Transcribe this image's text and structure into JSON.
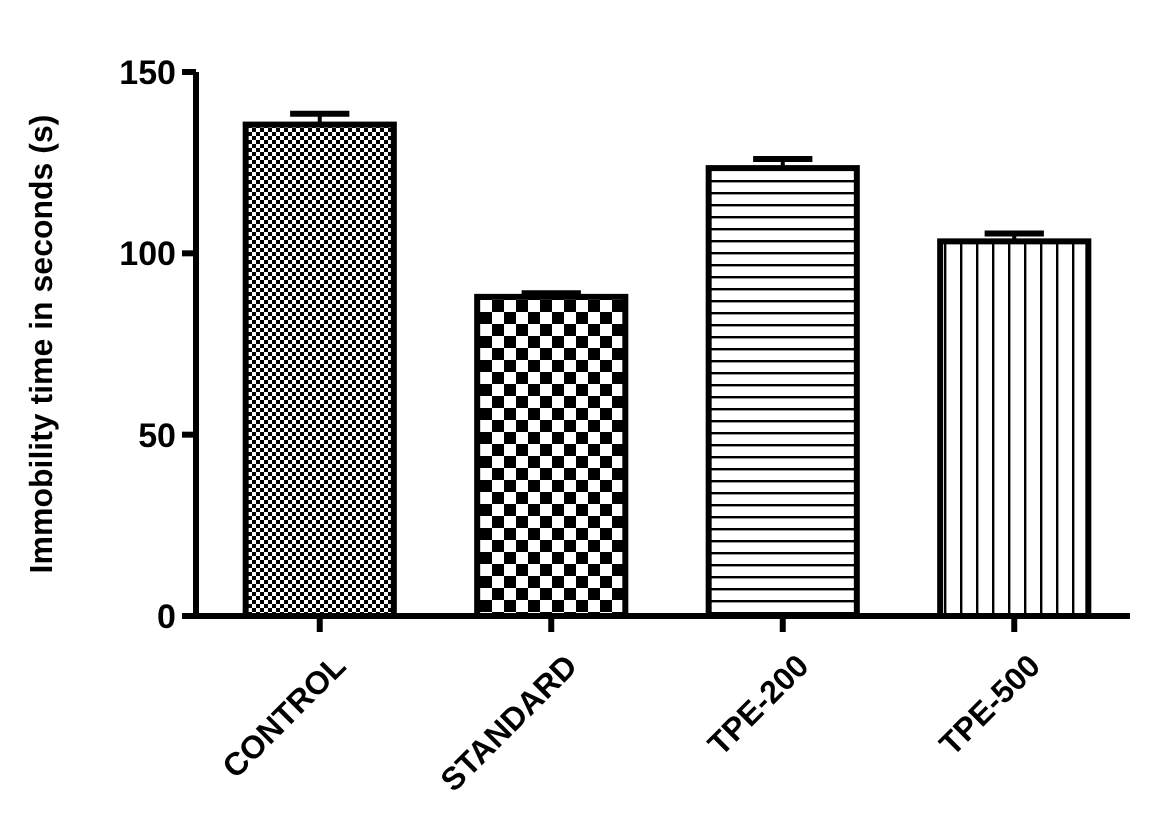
{
  "chart_data": {
    "type": "bar",
    "ylabel": "Immobility time in seconds (s)",
    "categories": [
      "CONTROL",
      "STANDARD",
      "TPE-200",
      "TPE-500"
    ],
    "values": [
      135.5,
      88,
      123.5,
      103.3
    ],
    "errors": [
      3,
      1,
      2.5,
      2.2
    ],
    "color": "#000000",
    "ylim": [
      0,
      150
    ],
    "yticks": [
      0,
      50,
      100,
      150
    ],
    "grid": false
  }
}
